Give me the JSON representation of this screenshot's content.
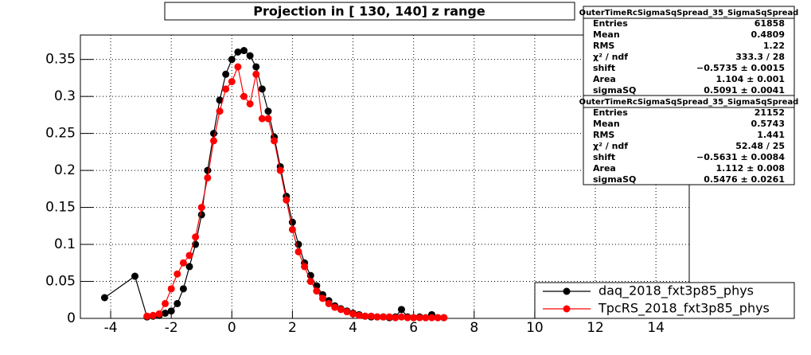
{
  "chart_data": {
    "type": "scatter",
    "title": "Projection in [ 130, 140] z range",
    "x": [
      -4.2,
      -3.2,
      -2.8,
      -2.6,
      -2.4,
      -2.2,
      -2.0,
      -1.8,
      -1.6,
      -1.4,
      -1.2,
      -1.0,
      -0.8,
      -0.6,
      -0.4,
      -0.2,
      0.0,
      0.2,
      0.4,
      0.6,
      0.8,
      1.0,
      1.2,
      1.4,
      1.6,
      1.8,
      2.0,
      2.2,
      2.4,
      2.6,
      2.8,
      3.0,
      3.2,
      3.4,
      3.6,
      3.8,
      4.0,
      4.2,
      4.4,
      4.6,
      4.8,
      5.0,
      5.2,
      5.4,
      5.6,
      5.8,
      6.0,
      6.2,
      6.4,
      6.6,
      6.8,
      7.0
    ],
    "series": [
      {
        "name": "daq_2018_fxt3p85_phys",
        "color": "#000000",
        "values": [
          0.028,
          0.057,
          0.002,
          0.003,
          0.004,
          0.007,
          0.01,
          0.02,
          0.04,
          0.07,
          0.1,
          0.14,
          0.2,
          0.25,
          0.295,
          0.33,
          0.35,
          0.36,
          0.362,
          0.355,
          0.34,
          0.31,
          0.28,
          0.245,
          0.205,
          0.165,
          0.13,
          0.1,
          0.075,
          0.058,
          0.044,
          0.032,
          0.024,
          0.017,
          0.013,
          0.01,
          0.007,
          0.005,
          0.003,
          0.002,
          0.002,
          0.002,
          0.001,
          0.002,
          0.012,
          0.002,
          0.001,
          0.002,
          0.001,
          0.005,
          0.001,
          0.001
        ]
      },
      {
        "name": "TpcRS_2018_fxt3p85_phys",
        "color": "#ff0000",
        "values": [
          null,
          null,
          0.003,
          0.004,
          0.006,
          0.02,
          0.04,
          0.06,
          0.075,
          0.085,
          0.11,
          0.15,
          0.19,
          0.24,
          0.28,
          0.31,
          0.32,
          0.34,
          0.3,
          0.29,
          0.33,
          0.27,
          0.27,
          0.24,
          0.2,
          0.16,
          0.12,
          0.09,
          0.07,
          0.05,
          0.037,
          0.027,
          0.02,
          0.015,
          0.012,
          0.009,
          0.006,
          0.004,
          0.003,
          0.003,
          0.002,
          0.002,
          0.002,
          0.001,
          0.002,
          0.001,
          0.001,
          0.001,
          0.001,
          0.001,
          0.001,
          0.001
        ]
      }
    ],
    "xlim": [
      -5,
      15.1
    ],
    "xticks": [
      -4,
      -2,
      0,
      2,
      4,
      6,
      8,
      10,
      12,
      14
    ],
    "ylim": [
      0,
      0.383
    ],
    "yticks": [
      0,
      0.05,
      0.1,
      0.15,
      0.2,
      0.25,
      0.3,
      0.35
    ],
    "grid": true,
    "legend": "bottom-right",
    "stat_boxes": [
      {
        "title": "OuterTimeRcSigmaSqSpread_35_SigmaSqSpread",
        "rows": [
          [
            "Entries",
            "61858"
          ],
          [
            "Mean",
            "0.4809"
          ],
          [
            "RMS",
            "1.22"
          ],
          [
            "χ² / ndf",
            "333.3 / 28"
          ],
          [
            "shift",
            "−0.5735 ± 0.0015"
          ],
          [
            "Area",
            "1.104 ± 0.001"
          ],
          [
            "sigmaSQ",
            "0.5091 ± 0.0041"
          ]
        ]
      },
      {
        "title": "OuterTimeRcSigmaSqSpread_35_SigmaSqSpread",
        "rows": [
          [
            "Entries",
            "21152"
          ],
          [
            "Mean",
            "0.5743"
          ],
          [
            "RMS",
            "1.441"
          ],
          [
            "χ² / ndf",
            "52.48 / 25"
          ],
          [
            "shift",
            "−0.5631 ± 0.0084"
          ],
          [
            "Area",
            "1.112 ± 0.008"
          ],
          [
            "sigmaSQ",
            "0.5476 ± 0.0261"
          ]
        ]
      }
    ]
  }
}
